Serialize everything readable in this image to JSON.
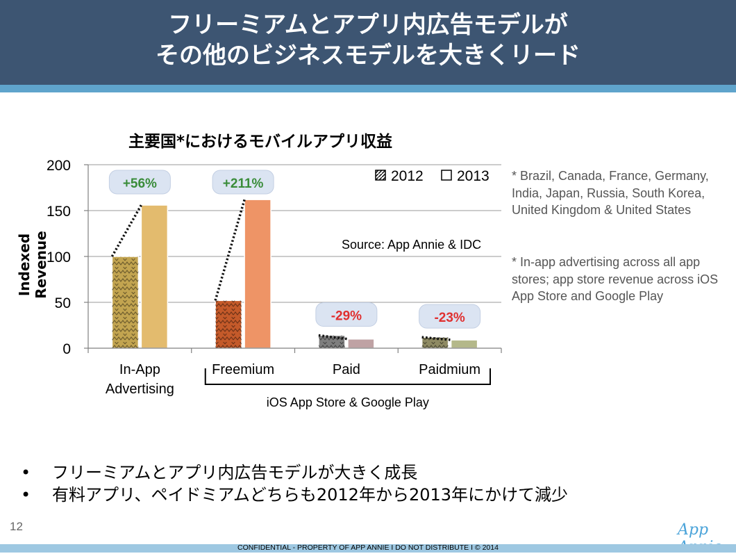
{
  "header": {
    "title_line1": "フリーミアムとアプリ内広告モデルが",
    "title_line2": "その他のビジネスモデルを大きくリード"
  },
  "chart_data": {
    "type": "bar",
    "title": "主要国*におけるモバイルアプリ収益",
    "ylabel": "Indexed Revenue",
    "xlabel": "",
    "ylim": [
      0,
      200
    ],
    "yticks": [
      0,
      50,
      100,
      150,
      200
    ],
    "grid": true,
    "legend_position": "top-right",
    "categories": [
      "In-App Advertising",
      "Freemium",
      "Paid",
      "Paidmium"
    ],
    "category_labels": [
      [
        "In-App",
        "Advertising"
      ],
      [
        "Freemium"
      ],
      [
        "Paid"
      ],
      [
        "Paidmium"
      ]
    ],
    "series": [
      {
        "name": "2012",
        "values": [
          100,
          52,
          14,
          12
        ]
      },
      {
        "name": "2013",
        "values": [
          156,
          162,
          10,
          9
        ]
      }
    ],
    "bar_colors": {
      "2012": [
        "#c2a450",
        "#c45a2a",
        "#7e7e7e",
        "#8e8a63"
      ],
      "2013": [
        "#e3bb6e",
        "#ee9466",
        "#bfa2a4",
        "#b4b88a"
      ]
    },
    "change_labels": [
      "+56%",
      "+211%",
      "-29%",
      "-23%"
    ],
    "change_colors": [
      "#3a8c3a",
      "#3a8c3a",
      "#e03030",
      "#e03030"
    ],
    "bracket_label": "iOS App Store & Google Play",
    "source": "Source: App Annie & IDC"
  },
  "notes": {
    "countries": "* Brazil, Canada, France, Germany, India, Japan, Russia, South Korea, United Kingdom & United States",
    "definition": "* In-app advertising across all app stores; app store revenue across iOS App Store and Google Play"
  },
  "bullets": [
    "フリーミアムとアプリ内広告モデルが大きく成長",
    "有料アプリ、ペイドミアムどちらも2012年から2013年にかけて減少"
  ],
  "bullet_symbol": "•",
  "page_number": "12",
  "logo_text": "App Annie",
  "footer": "CONFIDENTIAL - PROPERTY OF APP ANNIE  I  DO NOT DISTRIBUTE  I  © 2014",
  "colors": {
    "header_bg": "#3d5572",
    "header_stripe": "#5fa4cc",
    "footer_stripe": "#9ec8e2",
    "logo": "#4aa3d9"
  }
}
